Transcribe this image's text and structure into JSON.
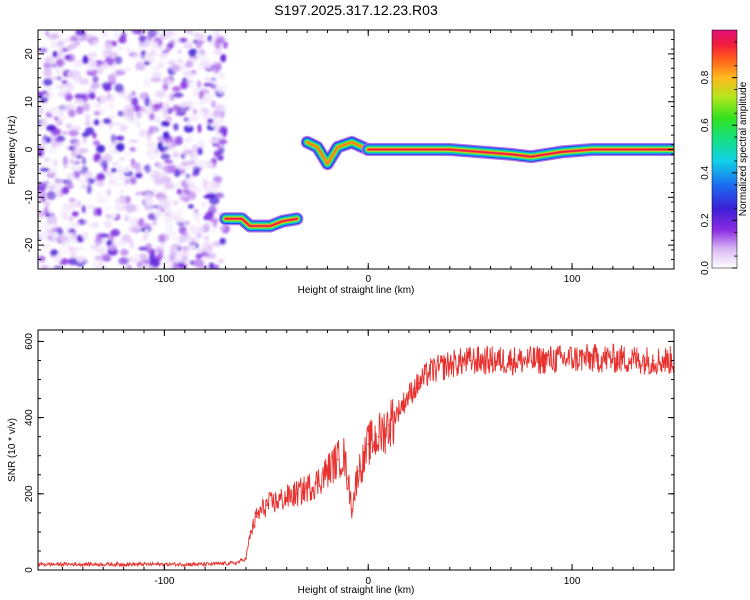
{
  "title": "S197.2025.317.12.23.R03",
  "chart_data": [
    {
      "type": "heatmap",
      "name": "spectrogram",
      "xlabel": "Height of straight line (km)",
      "ylabel": "Frequency (Hz)",
      "xlim": [
        -162,
        150
      ],
      "ylim": [
        -25,
        25
      ],
      "xticks": [
        -100,
        0,
        100
      ],
      "xtick_labels": [
        "-100",
        "0",
        "100"
      ],
      "yticks": [
        20,
        10,
        0,
        -10,
        -20
      ],
      "ytick_labels": [
        "20",
        "10",
        "0",
        "-10",
        "-20"
      ],
      "noise_region": {
        "x_range": [
          -162,
          -70
        ],
        "y_range": [
          -25,
          25
        ],
        "amplitude_range": [
          0.02,
          0.25
        ]
      },
      "features": [
        {
          "name": "low-band",
          "path": [
            [
              -70,
              -14.5
            ],
            [
              -62,
              -14.5
            ],
            [
              -58,
              -16
            ],
            [
              -48,
              -16
            ],
            [
              -42,
              -15
            ],
            [
              -35,
              -14.5
            ]
          ],
          "peak_amplitude": 1.0
        },
        {
          "name": "transition",
          "path": [
            [
              -30,
              1.5
            ],
            [
              -25,
              0.5
            ],
            [
              -20,
              -3
            ],
            [
              -15,
              0.5
            ],
            [
              -8,
              1.5
            ],
            [
              0,
              0
            ]
          ],
          "peak_amplitude": 0.9
        },
        {
          "name": "main-band",
          "path": [
            [
              0,
              0
            ],
            [
              40,
              0
            ],
            [
              70,
              -1
            ],
            [
              80,
              -1.5
            ],
            [
              95,
              -0.5
            ],
            [
              110,
              0
            ],
            [
              150,
              0
            ]
          ],
          "peak_amplitude": 1.0
        }
      ],
      "colorbar": {
        "label": "Normalized spectral amplitude",
        "range": [
          0.0,
          1.0
        ],
        "ticks": [
          0.0,
          0.2,
          0.4,
          0.6,
          0.8
        ],
        "tick_labels": [
          "0.0",
          "0.2",
          "0.4",
          "0.6",
          "0.8"
        ]
      }
    },
    {
      "type": "line",
      "name": "snr",
      "xlabel": "Height of straight line (km)",
      "ylabel": "SNR (10 * v/v)",
      "xlim": [
        -162,
        150
      ],
      "ylim": [
        0,
        630
      ],
      "xticks": [
        -100,
        0,
        100
      ],
      "xtick_labels": [
        "-100",
        "0",
        "100"
      ],
      "yticks": [
        0,
        200,
        400,
        600
      ],
      "ytick_labels": [
        "0",
        "200",
        "400",
        "600"
      ],
      "series": [
        {
          "name": "SNR",
          "color": "#e8312e",
          "x": [
            -162,
            -140,
            -120,
            -100,
            -80,
            -65,
            -60,
            -58,
            -55,
            -50,
            -45,
            -40,
            -35,
            -30,
            -25,
            -20,
            -15,
            -12,
            -10,
            -8,
            -5,
            -2,
            0,
            5,
            10,
            15,
            20,
            25,
            30,
            40,
            50,
            60,
            80,
            100,
            120,
            140,
            150
          ],
          "values": [
            15,
            15,
            15,
            15,
            15,
            18,
            30,
            90,
            140,
            170,
            180,
            190,
            200,
            215,
            230,
            260,
            290,
            300,
            240,
            160,
            260,
            290,
            330,
            350,
            380,
            420,
            460,
            490,
            520,
            540,
            550,
            550,
            550,
            555,
            555,
            550,
            550
          ]
        }
      ]
    }
  ]
}
